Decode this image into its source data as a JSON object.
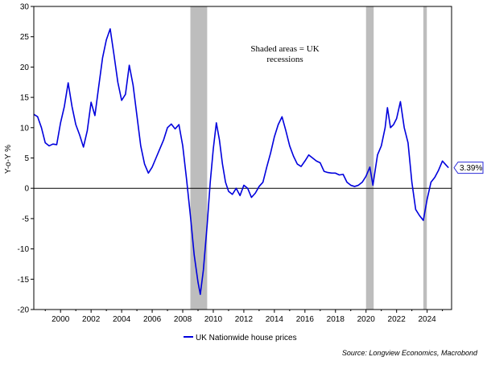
{
  "chart_data": {
    "type": "line",
    "title": "",
    "xlabel": "",
    "ylabel": "Y-o-Y %",
    "ylim": [
      -20,
      30
    ],
    "xlim": [
      1998.25,
      2025.6
    ],
    "y_ticks": [
      -20,
      -15,
      -10,
      -5,
      0,
      5,
      10,
      15,
      20,
      25,
      30
    ],
    "y_tick_labels": [
      "-20",
      "-15",
      "-10",
      "-5",
      "0",
      "5",
      "10",
      "15",
      "20",
      "25",
      "30"
    ],
    "x_ticks": [
      2000,
      2002,
      2004,
      2006,
      2008,
      2010,
      2012,
      2014,
      2016,
      2018,
      2020,
      2022,
      2024
    ],
    "x_tick_labels": [
      "2000",
      "2002",
      "2004",
      "2006",
      "2008",
      "2010",
      "2012",
      "2014",
      "2016",
      "2018",
      "2020",
      "2022",
      "2024"
    ],
    "grid": false,
    "recessions": [
      {
        "start": 2008.5,
        "end": 2009.6
      },
      {
        "start": 2020.0,
        "end": 2020.5
      },
      {
        "start": 2023.75,
        "end": 2023.98
      }
    ],
    "annotation": {
      "line1": "Shaded areas = UK",
      "line2": "recessions"
    },
    "last_value_label": "3.39%",
    "legend_position": "bottom-center",
    "source": "Source: Longview Economics, Macrobond",
    "series": [
      {
        "name": "UK Nationwide house prices",
        "color": "#0000dd",
        "points": [
          [
            1998.25,
            12.2
          ],
          [
            1998.5,
            11.8
          ],
          [
            1998.75,
            10.0
          ],
          [
            1999.0,
            7.5
          ],
          [
            1999.25,
            7.0
          ],
          [
            1999.5,
            7.3
          ],
          [
            1999.75,
            7.2
          ],
          [
            2000.0,
            10.8
          ],
          [
            2000.25,
            13.5
          ],
          [
            2000.5,
            17.4
          ],
          [
            2000.75,
            13.5
          ],
          [
            2001.0,
            10.5
          ],
          [
            2001.25,
            8.8
          ],
          [
            2001.5,
            6.8
          ],
          [
            2001.75,
            9.5
          ],
          [
            2002.0,
            14.2
          ],
          [
            2002.25,
            12.0
          ],
          [
            2002.5,
            16.8
          ],
          [
            2002.75,
            21.5
          ],
          [
            2003.0,
            24.5
          ],
          [
            2003.25,
            26.3
          ],
          [
            2003.5,
            22.0
          ],
          [
            2003.75,
            17.5
          ],
          [
            2004.0,
            14.5
          ],
          [
            2004.25,
            15.5
          ],
          [
            2004.5,
            20.3
          ],
          [
            2004.75,
            17.0
          ],
          [
            2005.0,
            12.0
          ],
          [
            2005.25,
            7.0
          ],
          [
            2005.5,
            4.0
          ],
          [
            2005.75,
            2.5
          ],
          [
            2006.0,
            3.5
          ],
          [
            2006.25,
            5.0
          ],
          [
            2006.5,
            6.5
          ],
          [
            2006.75,
            8.0
          ],
          [
            2007.0,
            10.0
          ],
          [
            2007.25,
            10.6
          ],
          [
            2007.5,
            9.8
          ],
          [
            2007.75,
            10.5
          ],
          [
            2008.0,
            7.0
          ],
          [
            2008.25,
            1.5
          ],
          [
            2008.5,
            -4.5
          ],
          [
            2008.75,
            -11.0
          ],
          [
            2009.0,
            -15.5
          ],
          [
            2009.15,
            -17.5
          ],
          [
            2009.35,
            -13.5
          ],
          [
            2009.6,
            -6.0
          ],
          [
            2009.8,
            1.0
          ],
          [
            2010.0,
            6.5
          ],
          [
            2010.2,
            10.8
          ],
          [
            2010.4,
            8.0
          ],
          [
            2010.6,
            4.0
          ],
          [
            2010.8,
            1.0
          ],
          [
            2011.0,
            -0.5
          ],
          [
            2011.25,
            -1.0
          ],
          [
            2011.5,
            0.0
          ],
          [
            2011.75,
            -1.2
          ],
          [
            2012.0,
            0.5
          ],
          [
            2012.25,
            0.0
          ],
          [
            2012.5,
            -1.5
          ],
          [
            2012.75,
            -0.8
          ],
          [
            2013.0,
            0.3
          ],
          [
            2013.25,
            1.0
          ],
          [
            2013.5,
            3.5
          ],
          [
            2013.75,
            5.8
          ],
          [
            2014.0,
            8.5
          ],
          [
            2014.25,
            10.5
          ],
          [
            2014.5,
            11.8
          ],
          [
            2014.75,
            9.5
          ],
          [
            2015.0,
            7.0
          ],
          [
            2015.25,
            5.3
          ],
          [
            2015.5,
            4.0
          ],
          [
            2015.75,
            3.6
          ],
          [
            2016.0,
            4.5
          ],
          [
            2016.25,
            5.5
          ],
          [
            2016.5,
            5.0
          ],
          [
            2016.75,
            4.5
          ],
          [
            2017.0,
            4.2
          ],
          [
            2017.25,
            2.8
          ],
          [
            2017.5,
            2.6
          ],
          [
            2017.75,
            2.5
          ],
          [
            2018.0,
            2.5
          ],
          [
            2018.25,
            2.2
          ],
          [
            2018.5,
            2.3
          ],
          [
            2018.75,
            1.0
          ],
          [
            2019.0,
            0.5
          ],
          [
            2019.25,
            0.3
          ],
          [
            2019.5,
            0.5
          ],
          [
            2019.75,
            1.0
          ],
          [
            2020.0,
            2.0
          ],
          [
            2020.25,
            3.5
          ],
          [
            2020.45,
            0.5
          ],
          [
            2020.75,
            5.5
          ],
          [
            2021.0,
            7.0
          ],
          [
            2021.25,
            10.0
          ],
          [
            2021.4,
            13.3
          ],
          [
            2021.6,
            10.0
          ],
          [
            2021.8,
            10.5
          ],
          [
            2022.0,
            11.5
          ],
          [
            2022.25,
            14.3
          ],
          [
            2022.5,
            10.0
          ],
          [
            2022.75,
            7.5
          ],
          [
            2023.0,
            1.0
          ],
          [
            2023.25,
            -3.5
          ],
          [
            2023.5,
            -4.5
          ],
          [
            2023.75,
            -5.3
          ],
          [
            2024.0,
            -1.8
          ],
          [
            2024.25,
            1.0
          ],
          [
            2024.5,
            1.8
          ],
          [
            2024.75,
            3.0
          ],
          [
            2025.0,
            4.5
          ],
          [
            2025.25,
            3.8
          ],
          [
            2025.4,
            3.39
          ]
        ]
      }
    ]
  }
}
